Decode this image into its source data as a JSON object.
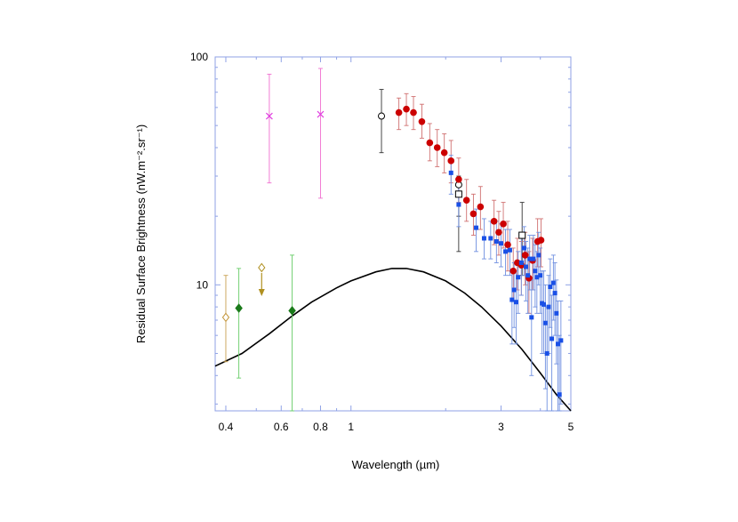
{
  "chart_data": {
    "type": "scatter",
    "xlabel": "Wavelength (µm)",
    "ylabel": "Residual Surface Brightness (nW.m⁻².sr⁻¹)",
    "x_scale": "log",
    "y_scale": "log",
    "xlim": [
      0.37,
      5.0
    ],
    "ylim": [
      2.8,
      100
    ],
    "x_ticks": [
      {
        "value": 0.4,
        "label": "0.4"
      },
      {
        "value": 0.6,
        "label": "0.6"
      },
      {
        "value": 0.8,
        "label": "0.8"
      },
      {
        "value": 1,
        "label": "1"
      },
      {
        "value": 3,
        "label": "3"
      },
      {
        "value": 5,
        "label": "5"
      }
    ],
    "y_ticks": [
      {
        "value": 10,
        "label": "10"
      },
      {
        "value": 100,
        "label": "100"
      }
    ],
    "grid": false,
    "legend": "none",
    "series": [
      {
        "marker": "x",
        "color": "#e040e0",
        "errcolor": "#f070d0",
        "points": [
          {
            "x": 0.55,
            "y": 55,
            "lo": 28,
            "hi": 84
          },
          {
            "x": 0.8,
            "y": 56,
            "lo": 24,
            "hi": 89
          }
        ]
      },
      {
        "marker": "open-circle",
        "color": "#000000",
        "errcolor": "#333333",
        "points": [
          {
            "x": 1.25,
            "y": 55,
            "lo": 38,
            "hi": 72
          },
          {
            "x": 2.2,
            "y": 27.5,
            "lo": 14,
            "hi": 30
          }
        ]
      },
      {
        "marker": "open-square",
        "color": "#000000",
        "errcolor": "#333333",
        "points": [
          {
            "x": 2.2,
            "y": 25,
            "lo": 20,
            "hi": 28
          },
          {
            "x": 3.5,
            "y": 16.5,
            "lo": 11,
            "hi": 23
          }
        ]
      },
      {
        "marker": "open-diamond",
        "color": "#c09030",
        "errcolor": "#c8a050",
        "points": [
          {
            "x": 0.4,
            "y": 7.2,
            "lo": 4.6,
            "hi": 11
          }
        ]
      },
      {
        "marker": "open-diamond-upper-limit",
        "color": "#b09020",
        "errcolor": "#b09020",
        "points": [
          {
            "x": 0.52,
            "y": 11.9
          }
        ]
      },
      {
        "marker": "filled-diamond",
        "color": "#1a7a1a",
        "errcolor": "#66cc66",
        "points": [
          {
            "x": 0.44,
            "y": 7.9,
            "lo": 3.9,
            "hi": 11.8
          },
          {
            "x": 0.65,
            "y": 7.7,
            "lo": 2.8,
            "hi": 13.5
          }
        ]
      },
      {
        "marker": "filled-circle",
        "color": "#cc0000",
        "errcolor": "#d07070",
        "points": [
          {
            "x": 1.42,
            "y": 57,
            "lo": 48,
            "hi": 66
          },
          {
            "x": 1.5,
            "y": 59,
            "lo": 50,
            "hi": 69
          },
          {
            "x": 1.58,
            "y": 57,
            "lo": 48,
            "hi": 67
          },
          {
            "x": 1.68,
            "y": 52,
            "lo": 44,
            "hi": 62
          },
          {
            "x": 1.78,
            "y": 42,
            "lo": 35,
            "hi": 51
          },
          {
            "x": 1.88,
            "y": 40,
            "lo": 33,
            "hi": 48
          },
          {
            "x": 1.98,
            "y": 38,
            "lo": 31,
            "hi": 46
          },
          {
            "x": 2.08,
            "y": 35,
            "lo": 28,
            "hi": 43
          },
          {
            "x": 2.2,
            "y": 29,
            "lo": 23,
            "hi": 36
          },
          {
            "x": 2.33,
            "y": 23.5,
            "lo": 19,
            "hi": 29
          },
          {
            "x": 2.45,
            "y": 20.5,
            "lo": 16.5,
            "hi": 25
          },
          {
            "x": 2.58,
            "y": 22,
            "lo": 17.5,
            "hi": 27
          },
          {
            "x": 2.85,
            "y": 19,
            "lo": 15,
            "hi": 23.5
          },
          {
            "x": 2.95,
            "y": 17,
            "lo": 13.5,
            "hi": 21
          },
          {
            "x": 3.05,
            "y": 18.5,
            "lo": 14.5,
            "hi": 23
          },
          {
            "x": 3.15,
            "y": 15,
            "lo": 11.5,
            "hi": 19
          },
          {
            "x": 3.28,
            "y": 11.5,
            "lo": 8.5,
            "hi": 14.5
          },
          {
            "x": 3.38,
            "y": 12.5,
            "lo": 9.5,
            "hi": 16
          },
          {
            "x": 3.48,
            "y": 12.2,
            "lo": 9,
            "hi": 15.5
          },
          {
            "x": 3.58,
            "y": 13.5,
            "lo": 10,
            "hi": 17
          },
          {
            "x": 3.68,
            "y": 10.7,
            "lo": 7.5,
            "hi": 14
          },
          {
            "x": 3.78,
            "y": 12.8,
            "lo": 9.5,
            "hi": 16
          },
          {
            "x": 3.92,
            "y": 15.5,
            "lo": 12,
            "hi": 19.5
          },
          {
            "x": 4.02,
            "y": 15.7,
            "lo": 12,
            "hi": 19.5
          }
        ]
      },
      {
        "marker": "filled-square",
        "color": "#1a50e6",
        "errcolor": "#7090e0",
        "points": [
          {
            "x": 2.08,
            "y": 31,
            "lo": 25,
            "hi": 37
          },
          {
            "x": 2.2,
            "y": 22.5,
            "lo": 18,
            "hi": 27
          },
          {
            "x": 2.5,
            "y": 17.8,
            "lo": 14,
            "hi": 21.5
          },
          {
            "x": 2.65,
            "y": 16,
            "lo": 13,
            "hi": 19.5
          },
          {
            "x": 2.78,
            "y": 16,
            "lo": 13,
            "hi": 19
          },
          {
            "x": 2.9,
            "y": 15.5,
            "lo": 12.5,
            "hi": 19
          },
          {
            "x": 3.0,
            "y": 15.2,
            "lo": 12,
            "hi": 18.5
          },
          {
            "x": 3.1,
            "y": 14,
            "lo": 11,
            "hi": 17.5
          },
          {
            "x": 3.2,
            "y": 14.2,
            "lo": 11,
            "hi": 17.5
          },
          {
            "x": 3.25,
            "y": 8.6,
            "lo": 5.5,
            "hi": 11.5
          },
          {
            "x": 3.3,
            "y": 9.5,
            "lo": 6.5,
            "hi": 12.5
          },
          {
            "x": 3.35,
            "y": 8.4,
            "lo": 5.5,
            "hi": 11.5
          },
          {
            "x": 3.4,
            "y": 10.8,
            "lo": 7.5,
            "hi": 14
          },
          {
            "x": 3.48,
            "y": 12.5,
            "lo": 9,
            "hi": 16
          },
          {
            "x": 3.55,
            "y": 14.5,
            "lo": 11,
            "hi": 18
          },
          {
            "x": 3.6,
            "y": 12,
            "lo": 8.5,
            "hi": 15.5
          },
          {
            "x": 3.65,
            "y": 11,
            "lo": 7.5,
            "hi": 14.5
          },
          {
            "x": 3.7,
            "y": 13,
            "lo": 9.5,
            "hi": 16.5
          },
          {
            "x": 3.75,
            "y": 7.2,
            "lo": 4,
            "hi": 10.5
          },
          {
            "x": 3.8,
            "y": 13,
            "lo": 9.5,
            "hi": 16.5
          },
          {
            "x": 3.85,
            "y": 11.5,
            "lo": 8,
            "hi": 15
          },
          {
            "x": 3.9,
            "y": 10.8,
            "lo": 7.5,
            "hi": 14
          },
          {
            "x": 3.95,
            "y": 13.5,
            "lo": 10,
            "hi": 17
          },
          {
            "x": 4.0,
            "y": 11,
            "lo": 7.5,
            "hi": 14.5
          },
          {
            "x": 4.05,
            "y": 8.3,
            "lo": 5,
            "hi": 11.5
          },
          {
            "x": 4.1,
            "y": 8.2,
            "lo": 5,
            "hi": 11.5
          },
          {
            "x": 4.15,
            "y": 6.8,
            "lo": 3.5,
            "hi": 10
          },
          {
            "x": 4.2,
            "y": 5.0,
            "lo": 2.8,
            "hi": 8
          },
          {
            "x": 4.25,
            "y": 8.0,
            "lo": 5,
            "hi": 11
          },
          {
            "x": 4.3,
            "y": 9.8,
            "lo": 6.5,
            "hi": 13
          },
          {
            "x": 4.35,
            "y": 5.8,
            "lo": 2.8,
            "hi": 9
          },
          {
            "x": 4.4,
            "y": 10.2,
            "lo": 7,
            "hi": 13.5
          },
          {
            "x": 4.45,
            "y": 9.2,
            "lo": 6,
            "hi": 12.5
          },
          {
            "x": 4.5,
            "y": 7.5,
            "lo": 4.5,
            "hi": 10.5
          },
          {
            "x": 4.55,
            "y": 5.5,
            "lo": 2.8,
            "hi": 8.5
          },
          {
            "x": 4.6,
            "y": 3.3,
            "lo": 2.8,
            "hi": 6
          },
          {
            "x": 4.65,
            "y": 5.7,
            "lo": 3,
            "hi": 8.5
          }
        ]
      },
      {
        "marker": "line",
        "color": "#000000",
        "points": [
          {
            "x": 0.37,
            "y": 4.4
          },
          {
            "x": 0.45,
            "y": 5.0
          },
          {
            "x": 0.55,
            "y": 6.1
          },
          {
            "x": 0.65,
            "y": 7.3
          },
          {
            "x": 0.75,
            "y": 8.4
          },
          {
            "x": 0.9,
            "y": 9.7
          },
          {
            "x": 1.0,
            "y": 10.4
          },
          {
            "x": 1.2,
            "y": 11.4
          },
          {
            "x": 1.35,
            "y": 11.8
          },
          {
            "x": 1.5,
            "y": 11.8
          },
          {
            "x": 1.7,
            "y": 11.4
          },
          {
            "x": 2.0,
            "y": 10.4
          },
          {
            "x": 2.3,
            "y": 9.2
          },
          {
            "x": 2.6,
            "y": 8.0
          },
          {
            "x": 3.0,
            "y": 6.6
          },
          {
            "x": 3.5,
            "y": 5.2
          },
          {
            "x": 4.0,
            "y": 4.1
          },
          {
            "x": 4.5,
            "y": 3.3
          },
          {
            "x": 5.0,
            "y": 2.8
          }
        ]
      }
    ]
  }
}
